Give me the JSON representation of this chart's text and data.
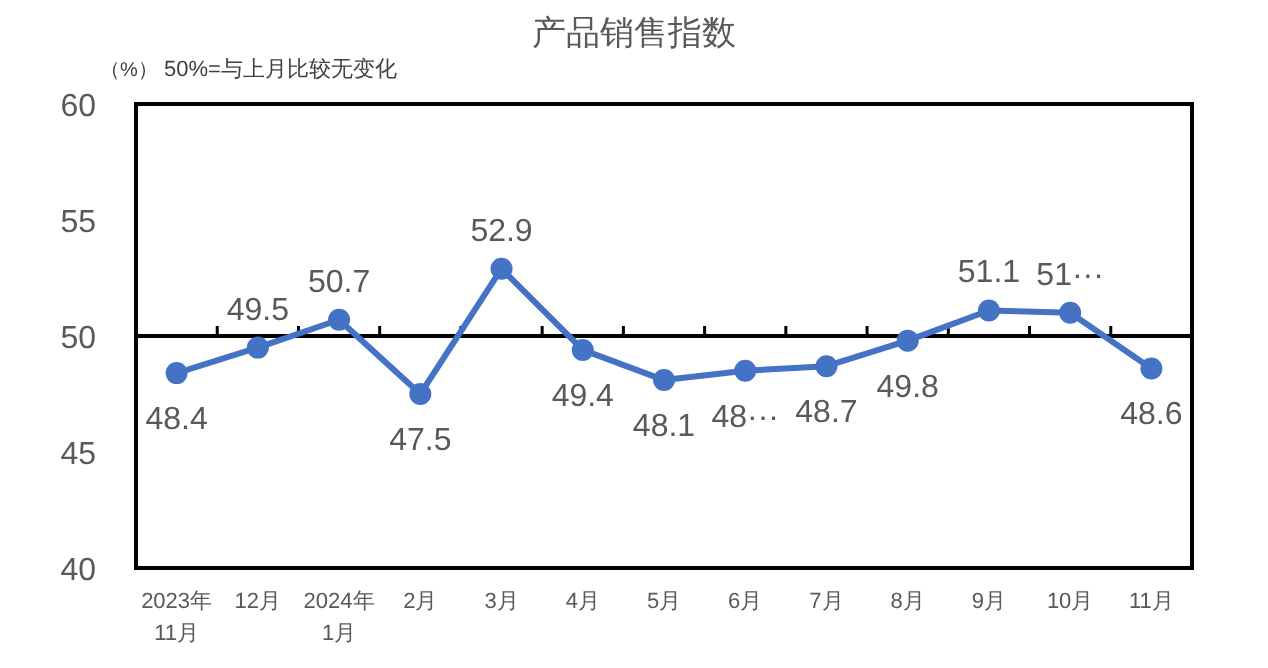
{
  "chart_data": {
    "type": "line",
    "title": "产品销售指数",
    "ylabel": "（%）",
    "annotations": [
      "50%=与上月比较无变化"
    ],
    "categories": [
      "2023年\n11月",
      "12月",
      "2024年\n1月",
      "2月",
      "3月",
      "4月",
      "5月",
      "6月",
      "7月",
      "8月",
      "9月",
      "10月",
      "11月"
    ],
    "series": [
      {
        "color": "#4472c4",
        "values": [
          48.4,
          49.5,
          50.7,
          47.5,
          52.9,
          49.4,
          48.1,
          48.5,
          48.7,
          49.8,
          51.1,
          51.0,
          48.6
        ],
        "value_labels": [
          "48.4",
          "49.5",
          "50.7",
          "47.5",
          "52.9",
          "49.4",
          "48.1",
          "48···",
          "48.7",
          "49.8",
          "51.1",
          "51···",
          "48.6"
        ]
      }
    ],
    "ylim": [
      40,
      60
    ],
    "yticks": [
      40,
      45,
      50,
      55,
      60
    ],
    "ref_lines": [
      {
        "axis": "y",
        "value": 50,
        "color": "#000000"
      }
    ],
    "marker": "circle",
    "line_style": "solid",
    "grid": false
  }
}
